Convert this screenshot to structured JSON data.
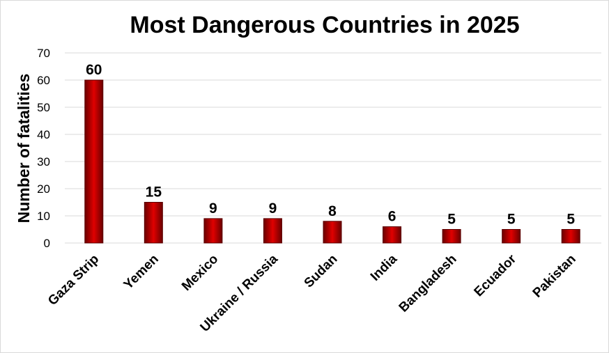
{
  "chart_data": {
    "type": "bar",
    "title": "Most Dangerous Countries in 2025",
    "xlabel": "",
    "ylabel": "Number of fatalities",
    "categories": [
      "Gaza Strip",
      "Yemen",
      "Mexico",
      "Ukraine / Russia",
      "Sudan",
      "India",
      "Bangladesh",
      "Ecuador",
      "Pakistan"
    ],
    "values": [
      60,
      15,
      9,
      9,
      8,
      6,
      5,
      5,
      5
    ],
    "ylim": [
      0,
      70
    ],
    "yticks": [
      0,
      10,
      20,
      30,
      40,
      50,
      60,
      70
    ],
    "grid": true,
    "legend": "none",
    "data_labels": true,
    "colors": {
      "bar_light": "#e00000",
      "bar_dark": "#6a0000",
      "gridline": "#d9d9d9"
    }
  }
}
